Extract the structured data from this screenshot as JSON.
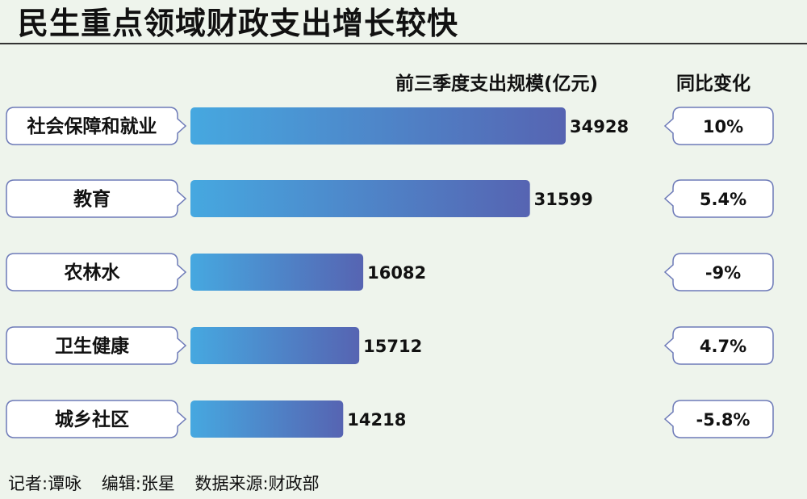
{
  "title": "民生重点领域财政支出增长较快",
  "column_headers": {
    "spend": "前三季度支出规模(亿元)",
    "yoy": "同比变化"
  },
  "footer": {
    "reporter": "记者:谭咏",
    "editor": "编辑:张星",
    "source": "数据来源:财政部"
  },
  "colors": {
    "bar_start": "#46a8e0",
    "bar_end": "#5664b2",
    "outline": "#6d7ab8"
  },
  "chart_data": {
    "type": "bar",
    "orientation": "horizontal",
    "title": "民生重点领域财政支出增长较快",
    "categories": [
      "社会保障和就业",
      "教育",
      "农林水",
      "卫生健康",
      "城乡社区"
    ],
    "series": [
      {
        "name": "前三季度支出规模(亿元)",
        "values": [
          34928,
          31599,
          16082,
          15712,
          14218
        ],
        "labels": [
          "34928",
          "31599",
          "16082",
          "15712",
          "14218"
        ]
      }
    ],
    "yoy_change": [
      "10%",
      "5.4%",
      "-9%",
      "4.7%",
      "-5.8%"
    ],
    "xlim": [
      0,
      34928
    ]
  }
}
